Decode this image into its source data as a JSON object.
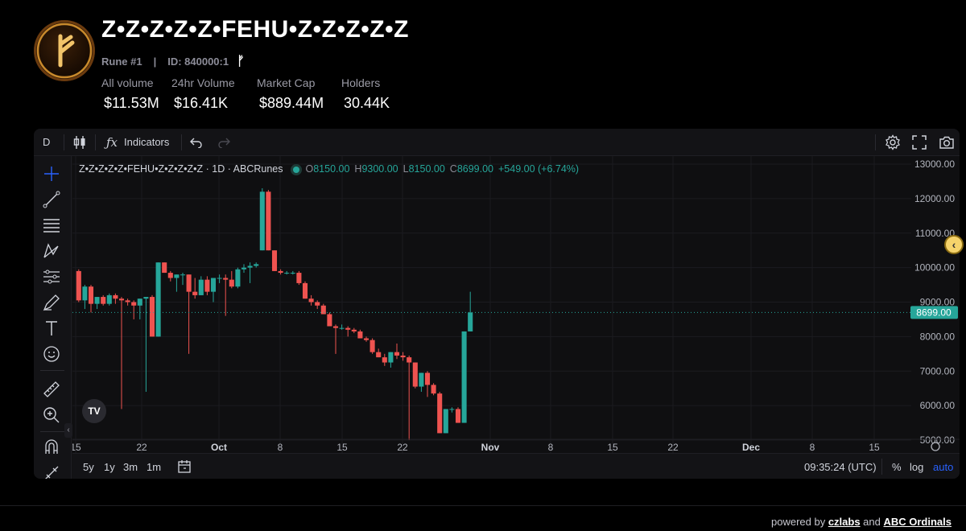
{
  "header": {
    "title": "Z•Z•Z•Z•Z•FEHU•Z•Z•Z•Z•Z",
    "rune_number": "Rune #1",
    "divider": "|",
    "rune_id": "ID: 840000:1",
    "rune_glyph": "ᚠ",
    "stats": [
      {
        "label": "All volume",
        "value": "$11.53M"
      },
      {
        "label": "24hr Volume",
        "value": "$16.41K"
      },
      {
        "label": "Market Cap",
        "value": "$889.44M"
      },
      {
        "label": "Holders",
        "value": "30.44K"
      }
    ]
  },
  "toolbar": {
    "interval": "D",
    "indicators_label": "Indicators"
  },
  "legend": {
    "symbol": "Z•Z•Z•Z•Z•FEHU•Z•Z•Z•Z•Z · 1D · ABCRunes",
    "o_label": "O",
    "o_value": "8150.00",
    "h_label": "H",
    "h_value": "9300.00",
    "l_label": "L",
    "l_value": "8150.00",
    "c_label": "C",
    "c_value": "8699.00",
    "change": "+549.00 (+6.74%)"
  },
  "price_axis": {
    "labels": [
      "13000.00",
      "12000.00",
      "11000.00",
      "10000.00",
      "9000.00",
      "8000.00",
      "7000.00",
      "6000.00",
      "5000.00"
    ],
    "current_price": "8699.00"
  },
  "time_axis": {
    "labels": [
      "15",
      "22",
      "Oct",
      "8",
      "15",
      "22",
      "Nov",
      "8",
      "15",
      "22",
      "Dec",
      "8",
      "15"
    ]
  },
  "bottom_bar": {
    "ranges": [
      "5y",
      "1y",
      "3m",
      "1m"
    ],
    "clock": "09:35:24 (UTC)",
    "percent": "%",
    "log": "log",
    "auto": "auto"
  },
  "colors": {
    "up": "#26a69a",
    "down": "#ef5350",
    "auto_active": "#2962ff"
  },
  "chart_data": {
    "type": "candlestick",
    "ylim": [
      4500,
      13200
    ],
    "candles": [
      {
        "o": 9900,
        "h": 9950,
        "l": 9000,
        "c": 9050
      },
      {
        "o": 9050,
        "h": 9500,
        "l": 8800,
        "c": 9450
      },
      {
        "o": 9450,
        "h": 9500,
        "l": 8700,
        "c": 8950
      },
      {
        "o": 8950,
        "h": 9150,
        "l": 8800,
        "c": 9150
      },
      {
        "o": 9150,
        "h": 9200,
        "l": 8900,
        "c": 8950
      },
      {
        "o": 8950,
        "h": 9250,
        "l": 8900,
        "c": 9200
      },
      {
        "o": 9200,
        "h": 9250,
        "l": 8950,
        "c": 9100
      },
      {
        "o": 9100,
        "h": 9150,
        "l": 5900,
        "c": 9050
      },
      {
        "o": 9050,
        "h": 9100,
        "l": 8900,
        "c": 9000
      },
      {
        "o": 9000,
        "h": 9050,
        "l": 8500,
        "c": 8900
      },
      {
        "o": 8900,
        "h": 9100,
        "l": 8500,
        "c": 9100
      },
      {
        "o": 9100,
        "h": 9150,
        "l": 6400,
        "c": 9150
      },
      {
        "o": 9150,
        "h": 9200,
        "l": 8000,
        "c": 8000
      },
      {
        "o": 8000,
        "h": 10150,
        "l": 8000,
        "c": 10150
      },
      {
        "o": 10150,
        "h": 10150,
        "l": 9850,
        "c": 9850
      },
      {
        "o": 9850,
        "h": 9900,
        "l": 9600,
        "c": 9700
      },
      {
        "o": 9700,
        "h": 9800,
        "l": 9300,
        "c": 9800
      },
      {
        "o": 9800,
        "h": 9850,
        "l": 9500,
        "c": 9800
      },
      {
        "o": 9800,
        "h": 9800,
        "l": 7500,
        "c": 9300
      },
      {
        "o": 9300,
        "h": 9700,
        "l": 9100,
        "c": 9200
      },
      {
        "o": 9200,
        "h": 9750,
        "l": 9200,
        "c": 9650
      },
      {
        "o": 9650,
        "h": 9750,
        "l": 9200,
        "c": 9300
      },
      {
        "o": 9300,
        "h": 9700,
        "l": 9000,
        "c": 9700
      },
      {
        "o": 9700,
        "h": 9800,
        "l": 9550,
        "c": 9700
      },
      {
        "o": 9700,
        "h": 9800,
        "l": 8600,
        "c": 9650
      },
      {
        "o": 9650,
        "h": 9900,
        "l": 9400,
        "c": 9450
      },
      {
        "o": 9450,
        "h": 10000,
        "l": 9400,
        "c": 9950
      },
      {
        "o": 9950,
        "h": 10100,
        "l": 9850,
        "c": 10000
      },
      {
        "o": 10000,
        "h": 10150,
        "l": 9550,
        "c": 10050
      },
      {
        "o": 10050,
        "h": 10150,
        "l": 10000,
        "c": 10100
      },
      {
        "o": 10500,
        "h": 12300,
        "l": 10500,
        "c": 12200
      },
      {
        "o": 12200,
        "h": 12250,
        "l": 10500,
        "c": 10500
      },
      {
        "o": 10500,
        "h": 10500,
        "l": 9900,
        "c": 9900
      },
      {
        "o": 9900,
        "h": 9950,
        "l": 9800,
        "c": 9850
      },
      {
        "o": 9850,
        "h": 9900,
        "l": 9800,
        "c": 9850
      },
      {
        "o": 9850,
        "h": 9900,
        "l": 9800,
        "c": 9850
      },
      {
        "o": 9850,
        "h": 9900,
        "l": 9500,
        "c": 9550
      },
      {
        "o": 9550,
        "h": 9600,
        "l": 9100,
        "c": 9100
      },
      {
        "o": 9100,
        "h": 9200,
        "l": 8900,
        "c": 9000
      },
      {
        "o": 9000,
        "h": 9050,
        "l": 8800,
        "c": 8900
      },
      {
        "o": 8900,
        "h": 8950,
        "l": 8650,
        "c": 8650
      },
      {
        "o": 8650,
        "h": 8700,
        "l": 8300,
        "c": 8300
      },
      {
        "o": 8300,
        "h": 8350,
        "l": 7500,
        "c": 8250
      },
      {
        "o": 8250,
        "h": 8350,
        "l": 8200,
        "c": 8250
      },
      {
        "o": 8250,
        "h": 8300,
        "l": 8000,
        "c": 8200
      },
      {
        "o": 8200,
        "h": 8250,
        "l": 8100,
        "c": 8150
      },
      {
        "o": 8150,
        "h": 8200,
        "l": 7950,
        "c": 7950
      },
      {
        "o": 7950,
        "h": 8000,
        "l": 7850,
        "c": 7900
      },
      {
        "o": 7900,
        "h": 7950,
        "l": 7500,
        "c": 7550
      },
      {
        "o": 7550,
        "h": 7650,
        "l": 7400,
        "c": 7400
      },
      {
        "o": 7400,
        "h": 7500,
        "l": 7150,
        "c": 7250
      },
      {
        "o": 7250,
        "h": 7550,
        "l": 7100,
        "c": 7550
      },
      {
        "o": 7550,
        "h": 7800,
        "l": 7350,
        "c": 7450
      },
      {
        "o": 7450,
        "h": 7550,
        "l": 7300,
        "c": 7400
      },
      {
        "o": 7400,
        "h": 7450,
        "l": 5000,
        "c": 7250
      },
      {
        "o": 7250,
        "h": 7250,
        "l": 6500,
        "c": 6550
      },
      {
        "o": 6550,
        "h": 6950,
        "l": 6400,
        "c": 6950
      },
      {
        "o": 6950,
        "h": 7000,
        "l": 6250,
        "c": 6600
      },
      {
        "o": 6600,
        "h": 6650,
        "l": 6300,
        "c": 6350
      },
      {
        "o": 6350,
        "h": 6400,
        "l": 5200,
        "c": 5200
      },
      {
        "o": 5200,
        "h": 5900,
        "l": 5200,
        "c": 5900
      },
      {
        "o": 5900,
        "h": 5950,
        "l": 5800,
        "c": 5900
      },
      {
        "o": 5900,
        "h": 5950,
        "l": 5500,
        "c": 5500
      },
      {
        "o": 5500,
        "h": 8150,
        "l": 5500,
        "c": 8150
      },
      {
        "o": 8150,
        "h": 9300,
        "l": 8150,
        "c": 8699
      }
    ]
  }
}
